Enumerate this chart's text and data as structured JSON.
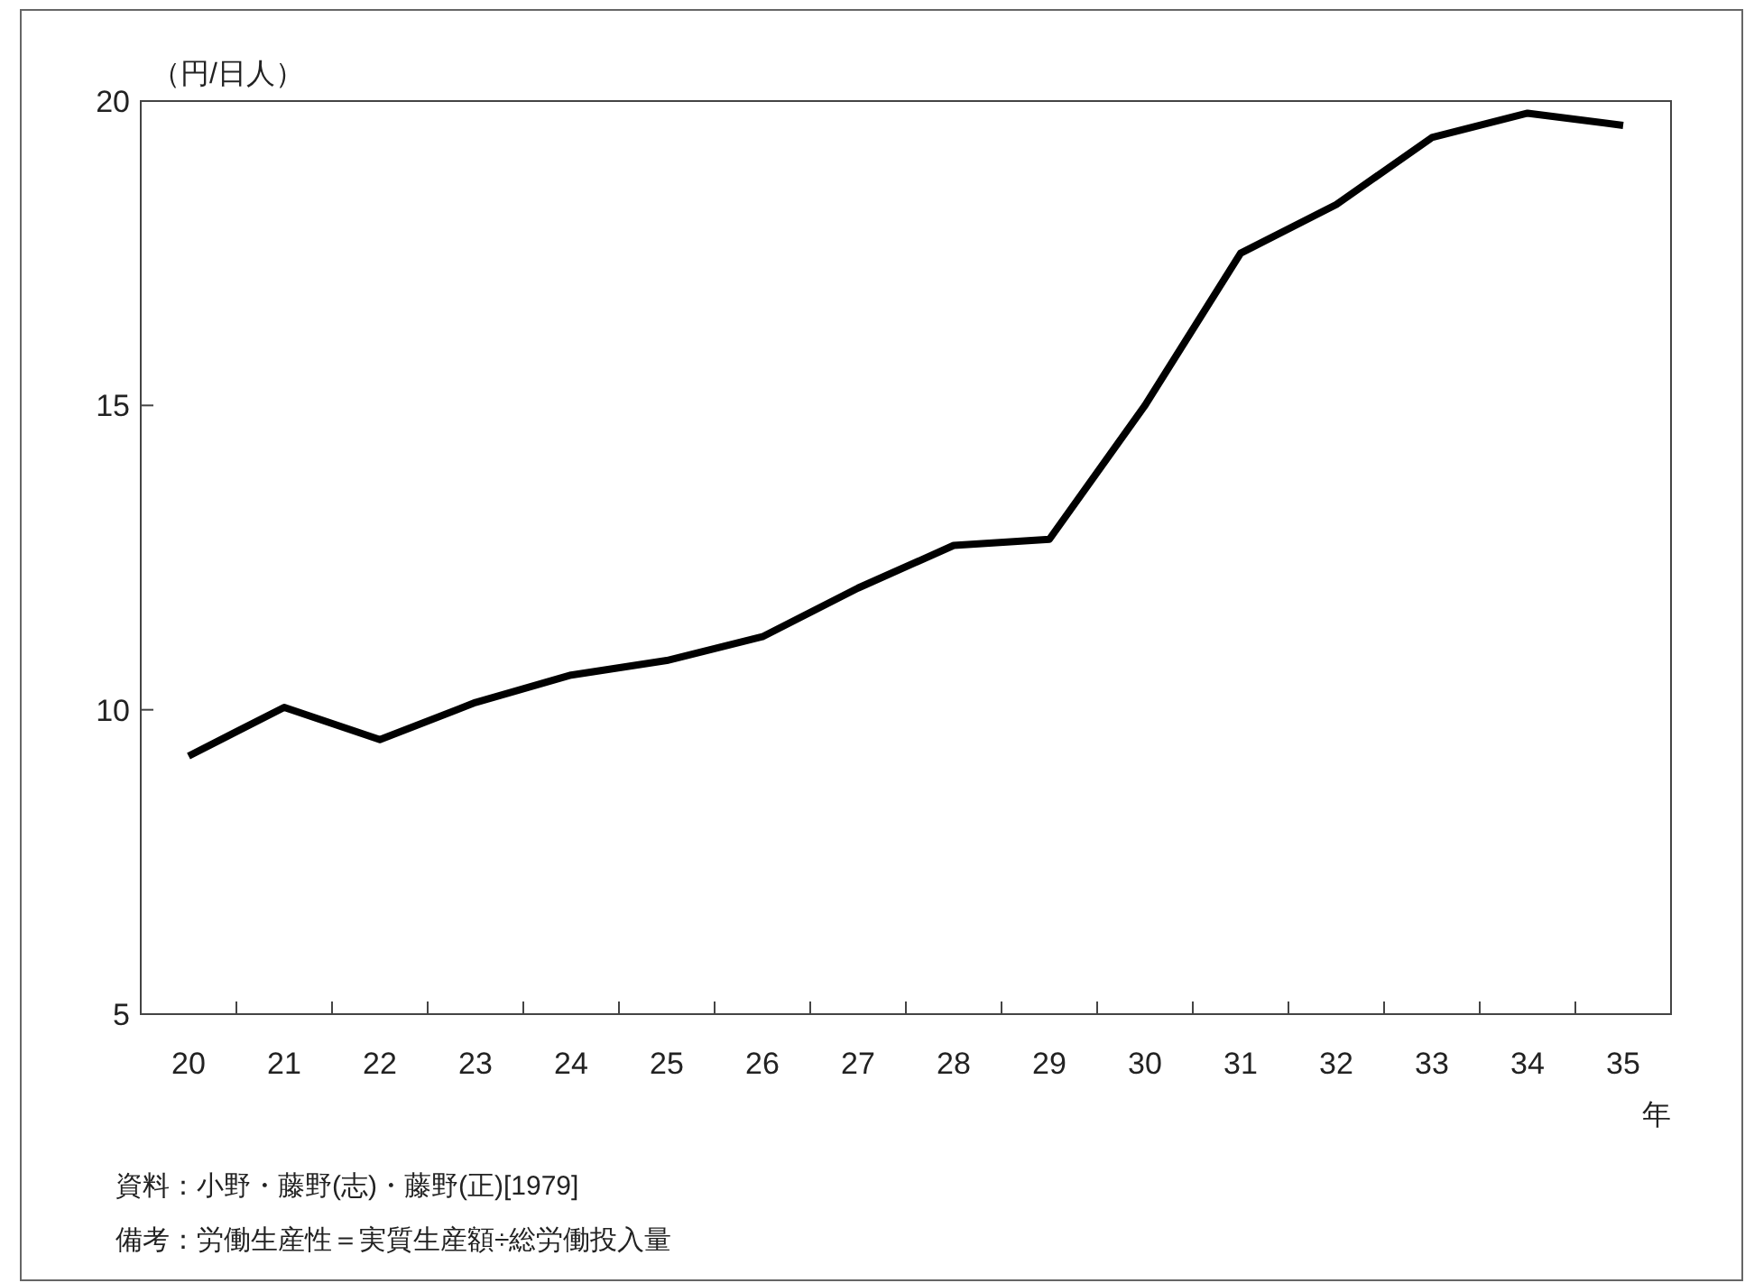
{
  "chart_data": {
    "type": "line",
    "ylabel": "（円/日人）",
    "xlabel": "年",
    "categories": [
      "20",
      "21",
      "22",
      "23",
      "24",
      "25",
      "26",
      "27",
      "28",
      "29",
      "30",
      "31",
      "32",
      "33",
      "34",
      "35"
    ],
    "series": [
      {
        "color": "#000000",
        "values": [
          9.24,
          10.04,
          9.51,
          10.12,
          10.57,
          10.81,
          11.2,
          12.0,
          12.7,
          12.8,
          15.0,
          17.5,
          18.3,
          19.4,
          19.8,
          19.6
        ]
      }
    ],
    "ylim": [
      5,
      20
    ],
    "yticks": [
      5,
      10,
      15,
      20
    ],
    "grid": false,
    "marker": "none",
    "line_style": "solid",
    "annotations": [
      "資料：小野・藤野(志)・藤野(正)[1979]",
      "備考：労働生産性＝実質生産額÷総労働投入量"
    ]
  }
}
